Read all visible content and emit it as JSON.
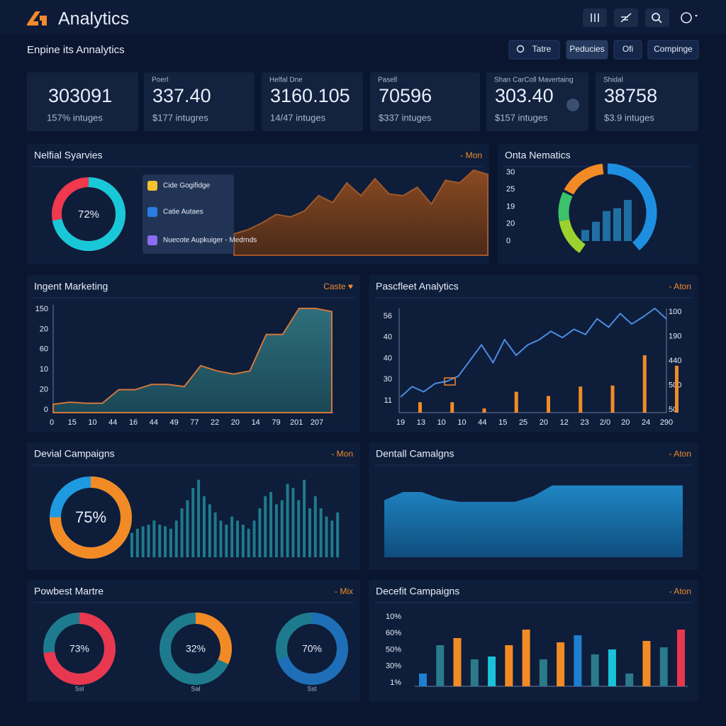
{
  "header": {
    "title": "Analytics"
  },
  "toolbar": {
    "title": "Enpine its Annalytics",
    "buttons": [
      "Tatre",
      "Peducies",
      "Ofi",
      "Compinge"
    ]
  },
  "kpis": [
    {
      "value": "303091",
      "sub": "157% intuges"
    },
    {
      "label": "Poerl",
      "value": "337.40",
      "sub": "$177 intugres"
    },
    {
      "label": "Helfal Dne",
      "value": "3160.105",
      "sub": "14/47 intuges"
    },
    {
      "label": "Pasell",
      "value": "70596",
      "sub": "$337 intuges"
    },
    {
      "label": "Shan CarColl Mavertaing",
      "value": "303.40",
      "sub": "$157 intuges"
    },
    {
      "label": "Shidal",
      "value": "38758",
      "sub": "$3.9 intuges"
    }
  ],
  "panels": {
    "services": {
      "title": "Nelfial Syarvies",
      "link": "- Mon",
      "donut": {
        "value": 72,
        "label": "72%"
      },
      "legend": [
        "Cide Gogifidge",
        "Catie Autaes",
        "Nuecote Aupkuiger - Medrnds"
      ],
      "area": [
        25,
        30,
        38,
        48,
        45,
        52,
        70,
        62,
        85,
        70,
        90,
        72,
        70,
        80,
        60,
        88,
        85,
        100,
        95
      ]
    },
    "metrics": {
      "title": "Onta Nematics",
      "ylabels": [
        "30",
        "25",
        "19",
        "20",
        "0"
      ],
      "bars": [
        27,
        47,
        73,
        80,
        100
      ]
    },
    "marketing": {
      "title": "Ingent Marketing",
      "link": "Caste ♥",
      "ylabels": [
        "150",
        "20",
        "60",
        "10",
        "20",
        "0"
      ],
      "xlabels": [
        "0",
        "15",
        "10",
        "44",
        "16",
        "44",
        "49",
        "77",
        "22",
        "20",
        "14",
        "79",
        "201",
        "207"
      ],
      "area": [
        8,
        10,
        9,
        9,
        22,
        22,
        27,
        27,
        25,
        45,
        40,
        37,
        40,
        75,
        75,
        100,
        100,
        97
      ]
    },
    "analytics": {
      "title": "Pascfleet Analytics",
      "link": "- Aton",
      "ylabels": [
        "56",
        "40",
        "40",
        "30",
        "11"
      ],
      "y2labels": [
        "100",
        "190",
        "440",
        "500",
        "50"
      ],
      "xlabels": [
        "19",
        "13",
        "10",
        "10",
        "44",
        "15",
        "25",
        "20",
        "12",
        "23",
        "2/0",
        "20",
        "24",
        "290"
      ],
      "line": [
        15,
        25,
        20,
        28,
        30,
        35,
        50,
        65,
        48,
        70,
        55,
        65,
        70,
        78,
        72,
        80,
        75,
        90,
        82,
        95,
        85,
        92,
        100,
        90
      ],
      "bars": [
        10,
        10,
        4,
        20,
        16,
        25,
        26,
        55,
        45
      ]
    },
    "campaigns": {
      "title": "Devial Campaigns",
      "link": "- Mon",
      "donut": {
        "value": 75,
        "label": "75%"
      },
      "bars": [
        30,
        35,
        38,
        40,
        45,
        40,
        38,
        35,
        45,
        60,
        70,
        85,
        95,
        75,
        65,
        55,
        45,
        40,
        50,
        45,
        40,
        35,
        45,
        60,
        75,
        80,
        65,
        70,
        90,
        85,
        70,
        95,
        60,
        75,
        60,
        50,
        45,
        55
      ]
    },
    "dental": {
      "title": "Dentall Camalgns",
      "link": "- Aton",
      "area": [
        70,
        80,
        80,
        72,
        68,
        68,
        68,
        68,
        75,
        88,
        88,
        88,
        88,
        88,
        88,
        88,
        88
      ]
    },
    "powbest": {
      "title": "Powbest Martre",
      "link": "- Mix",
      "donuts": [
        {
          "value": 73,
          "label": "73%",
          "caption": "Ssl",
          "color": "#e8384f"
        },
        {
          "value": 32,
          "label": "32%",
          "caption": "Sal",
          "color": "#f28b25"
        },
        {
          "value": 70,
          "label": "70%",
          "caption": "Sst",
          "color": "#1e6fb8"
        }
      ]
    },
    "decefit": {
      "title": "Decefit Campaigns",
      "link": "- Aton",
      "ylabels": [
        "10%",
        "60%",
        "50%",
        "30%",
        "1%"
      ],
      "values": [
        18,
        58,
        68,
        38,
        42,
        58,
        80,
        38,
        62,
        72,
        45,
        52,
        18,
        64,
        55,
        80
      ],
      "colors": [
        "#1e7fd0",
        "#2a7a8a",
        "#f28b25",
        "#2a7a8a",
        "#19c2d8",
        "#f28b25",
        "#f28b25",
        "#2a7a8a",
        "#f28b25",
        "#1e7fd0",
        "#2a7a8a",
        "#19c2d8",
        "#2a7a8a",
        "#f28b25",
        "#2a7a8a",
        "#e8384f"
      ]
    }
  }
}
